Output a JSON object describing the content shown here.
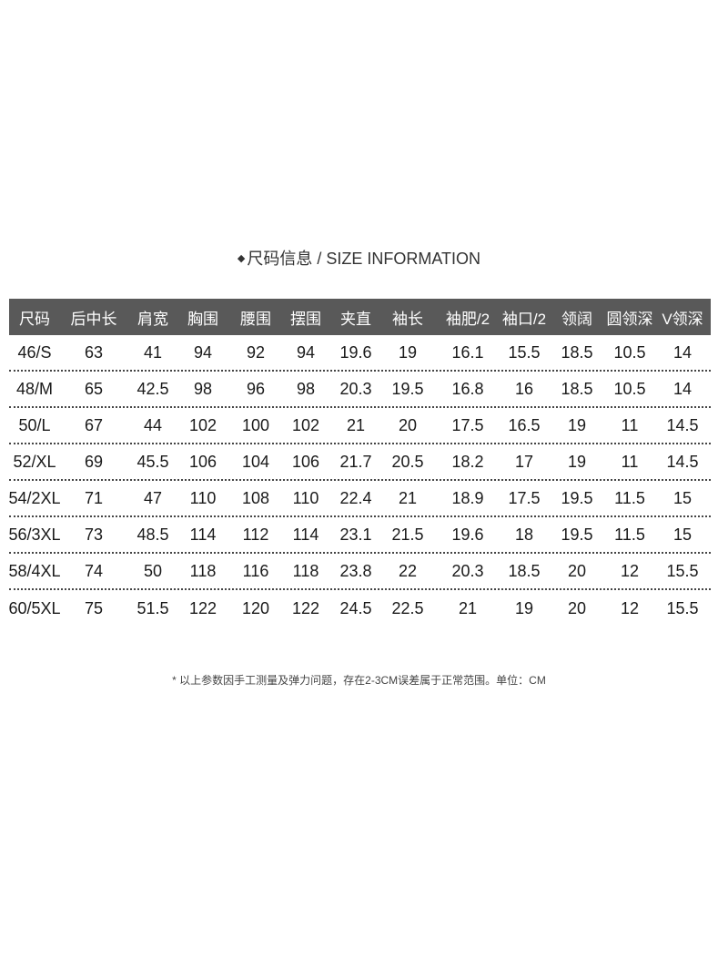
{
  "title": "尺码信息 / SIZE INFORMATION",
  "title_icon": "diamond-bullet",
  "header_bg": "#595959",
  "columns": [
    "尺码",
    "后中长",
    "肩宽",
    "胸围",
    "腰围",
    "摆围",
    "夹直",
    "袖长",
    "袖肥/2",
    "袖口/2",
    "领阔",
    "圆领深",
    "V领深"
  ],
  "rows": [
    [
      "46/S",
      "63",
      "41",
      "94",
      "92",
      "94",
      "19.6",
      "19",
      "16.1",
      "15.5",
      "18.5",
      "10.5",
      "14"
    ],
    [
      "48/M",
      "65",
      "42.5",
      "98",
      "96",
      "98",
      "20.3",
      "19.5",
      "16.8",
      "16",
      "18.5",
      "10.5",
      "14"
    ],
    [
      "50/L",
      "67",
      "44",
      "102",
      "100",
      "102",
      "21",
      "20",
      "17.5",
      "16.5",
      "19",
      "11",
      "14.5"
    ],
    [
      "52/XL",
      "69",
      "45.5",
      "106",
      "104",
      "106",
      "21.7",
      "20.5",
      "18.2",
      "17",
      "19",
      "11",
      "14.5"
    ],
    [
      "54/2XL",
      "71",
      "47",
      "110",
      "108",
      "110",
      "22.4",
      "21",
      "18.9",
      "17.5",
      "19.5",
      "11.5",
      "15"
    ],
    [
      "56/3XL",
      "73",
      "48.5",
      "114",
      "112",
      "114",
      "23.1",
      "21.5",
      "19.6",
      "18",
      "19.5",
      "11.5",
      "15"
    ],
    [
      "58/4XL",
      "74",
      "50",
      "118",
      "116",
      "118",
      "23.8",
      "22",
      "20.3",
      "18.5",
      "20",
      "12",
      "15.5"
    ],
    [
      "60/5XL",
      "75",
      "51.5",
      "122",
      "120",
      "122",
      "24.5",
      "22.5",
      "21",
      "19",
      "20",
      "12",
      "15.5"
    ]
  ],
  "note": "* 以上参数因手工测量及弹力问题，存在2-3CM误差属于正常范围。单位：CM"
}
